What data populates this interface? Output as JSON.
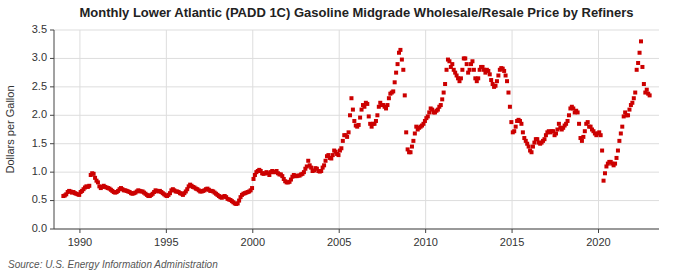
{
  "chart_data": {
    "type": "scatter",
    "title": "Monthly Lower Atlantic (PADD 1C) Gasoline Midgrade Wholesale/Resale Price by Refiners",
    "ylabel": "Dollars per Gallon",
    "source": "Source: U.S. Energy Information Administration",
    "color": "#cc0000",
    "marker": "square",
    "grid": true,
    "xlim": [
      1988.5,
      2023.5
    ],
    "ylim": [
      0.0,
      3.5
    ],
    "xticks": [
      1990,
      1995,
      2000,
      2005,
      2010,
      2015,
      2020
    ],
    "yticks": [
      {
        "value": 0.0,
        "label": "0.0"
      },
      0.5,
      {
        "value": 1.0,
        "label": "1.0"
      },
      1.5,
      {
        "value": 2.0,
        "label": "2.0"
      },
      2.5,
      {
        "value": 3.0,
        "label": "3.0"
      },
      3.5
    ],
    "x": [
      1989.0416666667,
      1989.125,
      1989.2083333333,
      1989.2916666667,
      1989.375,
      1989.4583333333,
      1989.5416666667,
      1989.625,
      1989.7083333333,
      1989.7916666667,
      1989.875,
      1989.9583333333,
      1990.0416666667,
      1990.125,
      1990.2083333333,
      1990.2916666667,
      1990.375,
      1990.4583333333,
      1990.5416666667,
      1990.625,
      1990.7083333333,
      1990.7916666667,
      1990.875,
      1990.9583333333,
      1991.0416666667,
      1991.125,
      1991.2083333333,
      1991.2916666667,
      1991.375,
      1991.4583333333,
      1991.5416666667,
      1991.625,
      1991.7083333333,
      1991.7916666667,
      1991.875,
      1991.9583333333,
      1992.0416666667,
      1992.125,
      1992.2083333333,
      1992.2916666667,
      1992.375,
      1992.4583333333,
      1992.5416666667,
      1992.625,
      1992.7083333333,
      1992.7916666667,
      1992.875,
      1992.9583333333,
      1993.0416666667,
      1993.125,
      1993.2083333333,
      1993.2916666667,
      1993.375,
      1993.4583333333,
      1993.5416666667,
      1993.625,
      1993.7083333333,
      1993.7916666667,
      1993.875,
      1993.9583333333,
      1994.0416666667,
      1994.125,
      1994.2083333333,
      1994.2916666667,
      1994.375,
      1994.4583333333,
      1994.5416666667,
      1994.625,
      1994.7083333333,
      1994.7916666667,
      1994.875,
      1994.9583333333,
      1995.0416666667,
      1995.125,
      1995.2083333333,
      1995.2916666667,
      1995.375,
      1995.4583333333,
      1995.5416666667,
      1995.625,
      1995.7083333333,
      1995.7916666667,
      1995.875,
      1995.9583333333,
      1996.0416666667,
      1996.125,
      1996.2083333333,
      1996.2916666667,
      1996.375,
      1996.4583333333,
      1996.5416666667,
      1996.625,
      1996.7083333333,
      1996.7916666667,
      1996.875,
      1996.9583333333,
      1997.0416666667,
      1997.125,
      1997.2083333333,
      1997.2916666667,
      1997.375,
      1997.4583333333,
      1997.5416666667,
      1997.625,
      1997.7083333333,
      1997.7916666667,
      1997.875,
      1997.9583333333,
      1998.0416666667,
      1998.125,
      1998.2083333333,
      1998.2916666667,
      1998.375,
      1998.4583333333,
      1998.5416666667,
      1998.625,
      1998.7083333333,
      1998.7916666667,
      1998.875,
      1998.9583333333,
      1999.0416666667,
      1999.125,
      1999.2083333333,
      1999.2916666667,
      1999.375,
      1999.4583333333,
      1999.5416666667,
      1999.625,
      1999.7083333333,
      1999.7916666667,
      1999.875,
      1999.9583333333,
      2000.0416666667,
      2000.125,
      2000.2083333333,
      2000.2916666667,
      2000.375,
      2000.4583333333,
      2000.5416666667,
      2000.625,
      2000.7083333333,
      2000.7916666667,
      2000.875,
      2000.9583333333,
      2001.0416666667,
      2001.125,
      2001.2083333333,
      2001.2916666667,
      2001.375,
      2001.4583333333,
      2001.5416666667,
      2001.625,
      2001.7083333333,
      2001.7916666667,
      2001.875,
      2001.9583333333,
      2002.0416666667,
      2002.125,
      2002.2083333333,
      2002.2916666667,
      2002.375,
      2002.4583333333,
      2002.5416666667,
      2002.625,
      2002.7083333333,
      2002.7916666667,
      2002.875,
      2002.9583333333,
      2003.0416666667,
      2003.125,
      2003.2083333333,
      2003.2916666667,
      2003.375,
      2003.4583333333,
      2003.5416666667,
      2003.625,
      2003.7083333333,
      2003.7916666667,
      2003.875,
      2003.9583333333,
      2004.0416666667,
      2004.125,
      2004.2083333333,
      2004.2916666667,
      2004.375,
      2004.4583333333,
      2004.5416666667,
      2004.625,
      2004.7083333333,
      2004.7916666667,
      2004.875,
      2004.9583333333,
      2005.0416666667,
      2005.125,
      2005.2083333333,
      2005.2916666667,
      2005.375,
      2005.4583333333,
      2005.5416666667,
      2005.625,
      2005.7083333333,
      2005.7916666667,
      2005.875,
      2005.9583333333,
      2006.0416666667,
      2006.125,
      2006.2083333333,
      2006.2916666667,
      2006.375,
      2006.4583333333,
      2006.5416666667,
      2006.625,
      2006.7083333333,
      2006.7916666667,
      2006.875,
      2006.9583333333,
      2007.0416666667,
      2007.125,
      2007.2083333333,
      2007.2916666667,
      2007.375,
      2007.4583333333,
      2007.5416666667,
      2007.625,
      2007.7083333333,
      2007.7916666667,
      2007.875,
      2007.9583333333,
      2008.0416666667,
      2008.125,
      2008.2083333333,
      2008.2916666667,
      2008.375,
      2008.4583333333,
      2008.5416666667,
      2008.625,
      2008.7083333333,
      2008.7916666667,
      2008.875,
      2008.9583333333,
      2009.0416666667,
      2009.125,
      2009.2083333333,
      2009.2916666667,
      2009.375,
      2009.4583333333,
      2009.5416666667,
      2009.625,
      2009.7083333333,
      2009.7916666667,
      2009.875,
      2009.9583333333,
      2010.0416666667,
      2010.125,
      2010.2083333333,
      2010.2916666667,
      2010.375,
      2010.4583333333,
      2010.5416666667,
      2010.625,
      2010.7083333333,
      2010.7916666667,
      2010.875,
      2010.9583333333,
      2011.0416666667,
      2011.125,
      2011.2083333333,
      2011.2916666667,
      2011.375,
      2011.4583333333,
      2011.5416666667,
      2011.625,
      2011.7083333333,
      2011.7916666667,
      2011.875,
      2011.9583333333,
      2012.0416666667,
      2012.125,
      2012.2083333333,
      2012.2916666667,
      2012.375,
      2012.4583333333,
      2012.5416666667,
      2012.625,
      2012.7083333333,
      2012.7916666667,
      2012.875,
      2012.9583333333,
      2013.0416666667,
      2013.125,
      2013.2083333333,
      2013.2916666667,
      2013.375,
      2013.4583333333,
      2013.5416666667,
      2013.625,
      2013.7083333333,
      2013.7916666667,
      2013.875,
      2013.9583333333,
      2014.0416666667,
      2014.125,
      2014.2083333333,
      2014.2916666667,
      2014.375,
      2014.4583333333,
      2014.5416666667,
      2014.625,
      2014.7083333333,
      2014.7916666667,
      2014.875,
      2014.9583333333,
      2015.0416666667,
      2015.125,
      2015.2083333333,
      2015.2916666667,
      2015.375,
      2015.4583333333,
      2015.5416666667,
      2015.625,
      2015.7083333333,
      2015.7916666667,
      2015.875,
      2015.9583333333,
      2016.0416666667,
      2016.125,
      2016.2083333333,
      2016.2916666667,
      2016.375,
      2016.4583333333,
      2016.5416666667,
      2016.625,
      2016.7083333333,
      2016.7916666667,
      2016.875,
      2016.9583333333,
      2017.0416666667,
      2017.125,
      2017.2083333333,
      2017.2916666667,
      2017.375,
      2017.4583333333,
      2017.5416666667,
      2017.625,
      2017.7083333333,
      2017.7916666667,
      2017.875,
      2017.9583333333,
      2018.0416666667,
      2018.125,
      2018.2083333333,
      2018.2916666667,
      2018.375,
      2018.4583333333,
      2018.5416666667,
      2018.625,
      2018.7083333333,
      2018.7916666667,
      2018.875,
      2018.9583333333,
      2019.0416666667,
      2019.125,
      2019.2083333333,
      2019.2916666667,
      2019.375,
      2019.4583333333,
      2019.5416666667,
      2019.625,
      2019.7083333333,
      2019.7916666667,
      2019.875,
      2019.9583333333,
      2020.0416666667,
      2020.125,
      2020.2083333333,
      2020.2916666667,
      2020.375,
      2020.4583333333,
      2020.5416666667,
      2020.625,
      2020.7083333333,
      2020.7916666667,
      2020.875,
      2020.9583333333,
      2021.0416666667,
      2021.125,
      2021.2083333333,
      2021.2916666667,
      2021.375,
      2021.4583333333,
      2021.5416666667,
      2021.625,
      2021.7083333333,
      2021.7916666667,
      2021.875,
      2021.9583333333,
      2022.0416666667,
      2022.125,
      2022.2083333333,
      2022.2916666667,
      2022.375,
      2022.4583333333,
      2022.5416666667,
      2022.625,
      2022.7083333333,
      2022.7916666667,
      2022.875,
      2022.9583333333
    ],
    "values": [
      0.58,
      0.59,
      0.61,
      0.65,
      0.67,
      0.66,
      0.64,
      0.65,
      0.63,
      0.62,
      0.61,
      0.6,
      0.65,
      0.67,
      0.7,
      0.73,
      0.75,
      0.74,
      0.76,
      0.95,
      0.98,
      0.97,
      0.9,
      0.85,
      0.82,
      0.75,
      0.72,
      0.74,
      0.76,
      0.74,
      0.73,
      0.72,
      0.71,
      0.69,
      0.67,
      0.65,
      0.64,
      0.65,
      0.67,
      0.7,
      0.72,
      0.7,
      0.68,
      0.68,
      0.67,
      0.66,
      0.65,
      0.63,
      0.62,
      0.63,
      0.64,
      0.66,
      0.68,
      0.67,
      0.66,
      0.66,
      0.64,
      0.62,
      0.6,
      0.58,
      0.58,
      0.6,
      0.62,
      0.65,
      0.68,
      0.67,
      0.66,
      0.67,
      0.65,
      0.63,
      0.61,
      0.59,
      0.58,
      0.6,
      0.63,
      0.68,
      0.7,
      0.68,
      0.66,
      0.66,
      0.65,
      0.63,
      0.62,
      0.6,
      0.63,
      0.66,
      0.7,
      0.75,
      0.78,
      0.76,
      0.74,
      0.73,
      0.71,
      0.7,
      0.68,
      0.66,
      0.66,
      0.67,
      0.68,
      0.7,
      0.71,
      0.69,
      0.67,
      0.67,
      0.66,
      0.64,
      0.62,
      0.6,
      0.58,
      0.56,
      0.55,
      0.57,
      0.58,
      0.56,
      0.53,
      0.52,
      0.51,
      0.49,
      0.47,
      0.45,
      0.44,
      0.45,
      0.5,
      0.56,
      0.6,
      0.62,
      0.63,
      0.64,
      0.65,
      0.66,
      0.68,
      0.72,
      0.88,
      0.95,
      1.0,
      1.02,
      1.04,
      1.02,
      0.98,
      0.97,
      0.98,
      1.0,
      0.98,
      0.95,
      1.0,
      1.02,
      1.0,
      1.0,
      1.02,
      0.98,
      0.96,
      0.96,
      0.93,
      0.88,
      0.84,
      0.82,
      0.82,
      0.83,
      0.87,
      0.92,
      0.95,
      0.93,
      0.93,
      0.94,
      0.94,
      0.96,
      0.97,
      1.0,
      1.06,
      1.1,
      1.2,
      1.12,
      1.08,
      1.02,
      1.03,
      1.07,
      1.06,
      1.02,
      1.01,
      1.02,
      1.08,
      1.12,
      1.2,
      1.28,
      1.3,
      1.25,
      1.24,
      1.3,
      1.38,
      1.36,
      1.32,
      1.3,
      1.38,
      1.42,
      1.55,
      1.65,
      1.65,
      1.62,
      1.7,
      2.0,
      2.3,
      2.1,
      1.9,
      1.82,
      1.8,
      1.83,
      1.96,
      2.1,
      2.18,
      2.15,
      2.22,
      2.2,
      1.98,
      1.85,
      1.8,
      1.85,
      1.85,
      1.9,
      2.0,
      2.15,
      2.22,
      2.18,
      2.18,
      2.15,
      2.12,
      2.18,
      2.3,
      2.38,
      2.4,
      2.42,
      2.58,
      2.75,
      2.9,
      3.1,
      3.15,
      2.98,
      2.8,
      2.35,
      1.7,
      1.4,
      1.35,
      1.35,
      1.45,
      1.55,
      1.68,
      1.8,
      1.75,
      1.78,
      1.8,
      1.82,
      1.85,
      1.9,
      1.95,
      1.98,
      2.05,
      2.12,
      2.1,
      2.05,
      2.05,
      2.08,
      2.1,
      2.15,
      2.18,
      2.28,
      2.4,
      2.55,
      2.8,
      2.98,
      2.95,
      2.85,
      2.9,
      2.8,
      2.75,
      2.7,
      2.65,
      2.6,
      2.65,
      2.8,
      3.0,
      3.0,
      2.9,
      2.75,
      2.8,
      2.9,
      2.95,
      2.8,
      2.65,
      2.6,
      2.65,
      2.8,
      2.85,
      2.85,
      2.8,
      2.75,
      2.8,
      2.78,
      2.72,
      2.62,
      2.55,
      2.5,
      2.52,
      2.6,
      2.7,
      2.8,
      2.83,
      2.82,
      2.78,
      2.7,
      2.6,
      2.4,
      2.15,
      1.88,
      1.7,
      1.72,
      1.8,
      1.9,
      1.92,
      1.9,
      1.85,
      1.7,
      1.6,
      1.55,
      1.5,
      1.45,
      1.38,
      1.35,
      1.45,
      1.52,
      1.58,
      1.58,
      1.52,
      1.5,
      1.52,
      1.55,
      1.58,
      1.65,
      1.7,
      1.72,
      1.7,
      1.72,
      1.72,
      1.65,
      1.68,
      1.75,
      1.85,
      1.78,
      1.75,
      1.78,
      1.82,
      1.85,
      1.9,
      2.0,
      2.12,
      2.15,
      2.12,
      2.05,
      2.08,
      2.05,
      1.85,
      1.6,
      1.55,
      1.62,
      1.72,
      1.85,
      1.88,
      1.8,
      1.8,
      1.75,
      1.72,
      1.68,
      1.65,
      1.68,
      1.7,
      1.65,
      1.38,
      0.85,
      0.98,
      1.1,
      1.15,
      1.18,
      1.18,
      1.15,
      1.12,
      1.15,
      1.25,
      1.38,
      1.55,
      1.68,
      1.8,
      1.98,
      2.05,
      2.0,
      2.0,
      2.1,
      2.18,
      2.22,
      2.3,
      2.4,
      2.8,
      2.92,
      3.1,
      3.3,
      2.85,
      2.55,
      2.4,
      2.45,
      2.38,
      2.35
    ]
  }
}
